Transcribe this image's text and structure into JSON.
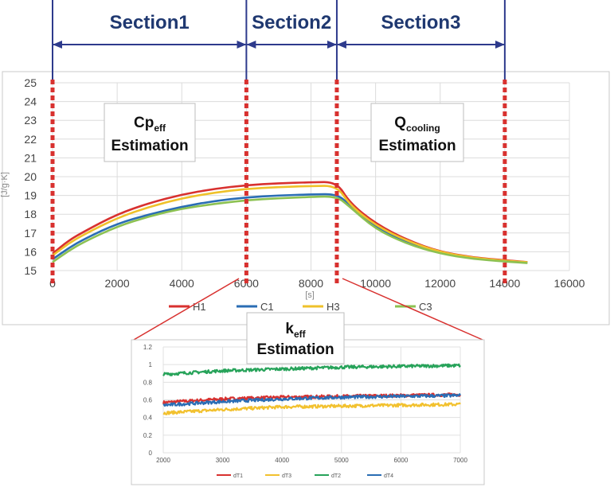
{
  "sections": [
    {
      "label": "Section1",
      "from": 0,
      "to": 6000
    },
    {
      "label": "Section2",
      "from": 6000,
      "to": 8800
    },
    {
      "label": "Section3",
      "from": 8800,
      "to": 14000
    }
  ],
  "boxes": {
    "cp": {
      "main": "Cp",
      "sub": "eff",
      "line2": "Estimation"
    },
    "q": {
      "main": "Q",
      "sub": "cooling",
      "line2": "Estimation"
    },
    "k": {
      "main": "k",
      "sub": "eff",
      "line2": "Estimation"
    }
  },
  "colors": {
    "H1": "#d8312f",
    "C1": "#2a6db4",
    "H3": "#efc12a",
    "C3": "#8cc152",
    "dT1": "#d8312f",
    "dT3": "#f2c12e",
    "dT2": "#27a35a",
    "dT4": "#2a6db4",
    "guide": "#d8312f",
    "section": "#2d3a8c"
  },
  "chart_data": [
    {
      "type": "line",
      "title": "",
      "xlabel": "[s]",
      "ylabel": "[J/g·K]",
      "xlim": [
        0,
        16000
      ],
      "ylim": [
        15,
        25
      ],
      "x_ticks": [
        "0",
        "2000",
        "4000",
        "6000",
        "8000",
        "10000",
        "12000",
        "14000",
        "16000"
      ],
      "y_ticks": [
        "15",
        "16",
        "17",
        "18",
        "19",
        "20",
        "21",
        "22",
        "23",
        "24",
        "25"
      ],
      "grid": true,
      "legend_position": "bottom",
      "vertical_guides": [
        0,
        6000,
        8800,
        14000
      ],
      "series": [
        {
          "name": "H1",
          "points": [
            [
              0,
              15.9
            ],
            [
              500,
              16.6
            ],
            [
              1000,
              17.1
            ],
            [
              2000,
              18.0
            ],
            [
              3000,
              18.6
            ],
            [
              4000,
              19.05
            ],
            [
              5000,
              19.35
            ],
            [
              6000,
              19.55
            ],
            [
              7000,
              19.65
            ],
            [
              8000,
              19.7
            ],
            [
              8800,
              19.72
            ],
            [
              9200,
              18.6
            ],
            [
              10000,
              17.5
            ],
            [
              11000,
              16.6
            ],
            [
              12000,
              16.0
            ],
            [
              13000,
              15.7
            ],
            [
              14000,
              15.55
            ],
            [
              14700,
              15.45
            ]
          ]
        },
        {
          "name": "C1",
          "points": [
            [
              0,
              15.6
            ],
            [
              500,
              16.2
            ],
            [
              1000,
              16.7
            ],
            [
              2000,
              17.5
            ],
            [
              3000,
              18.0
            ],
            [
              4000,
              18.4
            ],
            [
              5000,
              18.7
            ],
            [
              6000,
              18.9
            ],
            [
              7000,
              19.0
            ],
            [
              8000,
              19.05
            ],
            [
              8800,
              19.08
            ],
            [
              9200,
              18.5
            ],
            [
              10000,
              17.3
            ],
            [
              11000,
              16.5
            ],
            [
              12000,
              15.95
            ],
            [
              13000,
              15.65
            ],
            [
              14000,
              15.5
            ],
            [
              14700,
              15.42
            ]
          ]
        },
        {
          "name": "H3",
          "points": [
            [
              0,
              15.8
            ],
            [
              500,
              16.45
            ],
            [
              1000,
              16.95
            ],
            [
              2000,
              17.8
            ],
            [
              3000,
              18.4
            ],
            [
              4000,
              18.85
            ],
            [
              5000,
              19.15
            ],
            [
              6000,
              19.35
            ],
            [
              7000,
              19.45
            ],
            [
              8000,
              19.5
            ],
            [
              8800,
              19.52
            ],
            [
              9200,
              18.5
            ],
            [
              10000,
              17.4
            ],
            [
              11000,
              16.55
            ],
            [
              12000,
              15.98
            ],
            [
              13000,
              15.68
            ],
            [
              14000,
              15.52
            ],
            [
              14700,
              15.44
            ]
          ]
        },
        {
          "name": "C3",
          "points": [
            [
              0,
              15.45
            ],
            [
              500,
              16.05
            ],
            [
              1000,
              16.55
            ],
            [
              2000,
              17.35
            ],
            [
              3000,
              17.9
            ],
            [
              4000,
              18.3
            ],
            [
              5000,
              18.55
            ],
            [
              6000,
              18.75
            ],
            [
              7000,
              18.85
            ],
            [
              8000,
              18.92
            ],
            [
              8800,
              18.95
            ],
            [
              9200,
              18.4
            ],
            [
              10000,
              17.2
            ],
            [
              11000,
              16.4
            ],
            [
              12000,
              15.9
            ],
            [
              13000,
              15.62
            ],
            [
              14000,
              15.48
            ],
            [
              14700,
              15.4
            ]
          ]
        }
      ]
    },
    {
      "type": "line",
      "title": "",
      "xlim": [
        2000,
        7000
      ],
      "ylim": [
        0,
        1.2
      ],
      "x_ticks": [
        "2000",
        "3000",
        "4000",
        "5000",
        "6000",
        "7000"
      ],
      "y_ticks": [
        "0",
        "0.2",
        "0.4",
        "0.6",
        "0.8",
        "1",
        "1.2"
      ],
      "grid": true,
      "legend_position": "bottom",
      "series": [
        {
          "name": "dT1",
          "points": [
            [
              2000,
              0.57
            ],
            [
              3000,
              0.61
            ],
            [
              4000,
              0.63
            ],
            [
              5000,
              0.64
            ],
            [
              6000,
              0.65
            ],
            [
              7000,
              0.66
            ]
          ]
        },
        {
          "name": "dT3",
          "points": [
            [
              2000,
              0.45
            ],
            [
              3000,
              0.49
            ],
            [
              4000,
              0.52
            ],
            [
              5000,
              0.53
            ],
            [
              6000,
              0.54
            ],
            [
              7000,
              0.55
            ]
          ]
        },
        {
          "name": "dT2",
          "points": [
            [
              2000,
              0.89
            ],
            [
              3000,
              0.93
            ],
            [
              4000,
              0.95
            ],
            [
              5000,
              0.97
            ],
            [
              6000,
              0.98
            ],
            [
              7000,
              0.99
            ]
          ]
        },
        {
          "name": "dT4",
          "points": [
            [
              2000,
              0.54
            ],
            [
              3000,
              0.58
            ],
            [
              4000,
              0.61
            ],
            [
              5000,
              0.63
            ],
            [
              6000,
              0.64
            ],
            [
              7000,
              0.65
            ]
          ]
        }
      ]
    }
  ]
}
